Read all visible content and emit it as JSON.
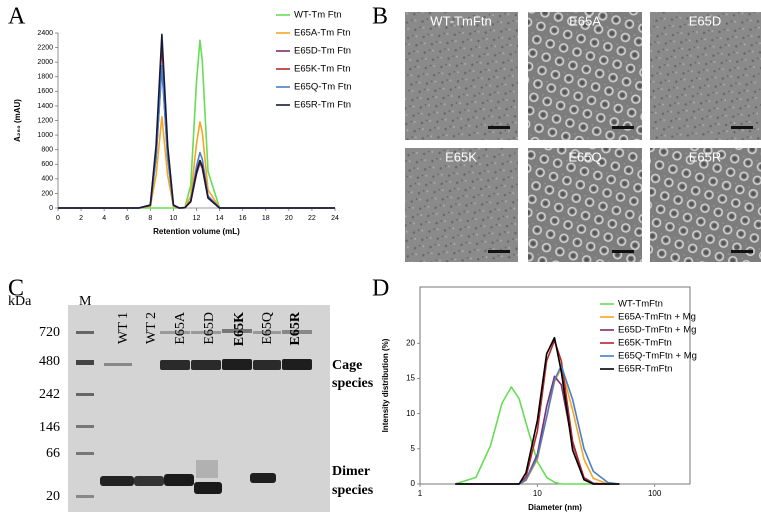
{
  "panel_labels": [
    "A",
    "B",
    "C",
    "D"
  ],
  "chart_data": [
    {
      "type": "line",
      "x_label": "Retention volume (mL)",
      "y_label": "A₂₈₀ (mAU)",
      "x": [
        0,
        7,
        8,
        8.5,
        9,
        9.5,
        10,
        10.5,
        11,
        11.5,
        12,
        12.3,
        12.5,
        13,
        14,
        24
      ],
      "xlim": [
        0,
        24
      ],
      "xticks": [
        0,
        2,
        4,
        6,
        8,
        10,
        12,
        14,
        16,
        18,
        20,
        22,
        24
      ],
      "ylim": [
        0,
        2400
      ],
      "yticks": [
        0,
        200,
        400,
        600,
        800,
        1000,
        1200,
        1400,
        1600,
        1800,
        2000,
        2200,
        2400
      ],
      "frame": false,
      "legend": "upper right",
      "series": [
        {
          "name": "WT-Tm Ftn",
          "color": "#66dd55",
          "values": [
            0,
            0,
            0,
            0,
            0,
            0,
            0,
            0,
            10,
            310,
            1730,
            2300,
            2020,
            500,
            0,
            0
          ]
        },
        {
          "name": "E65A-Tm Ftn",
          "color": "#f5a623",
          "values": [
            0,
            0,
            20,
            450,
            1250,
            450,
            20,
            0,
            10,
            160,
            880,
            1180,
            1040,
            250,
            0,
            0
          ]
        },
        {
          "name": "E65D-Tm Ftn",
          "color": "#7b2d70",
          "values": [
            0,
            0,
            35,
            700,
            1950,
            700,
            35,
            0,
            5,
            90,
            490,
            650,
            570,
            140,
            0,
            0
          ]
        },
        {
          "name": "E65K-Tm Ftn",
          "color": "#b5282a",
          "values": [
            0,
            0,
            40,
            810,
            2250,
            810,
            40,
            0,
            5,
            85,
            465,
            620,
            545,
            135,
            0,
            0
          ]
        },
        {
          "name": "E65Q-Tm Ftn",
          "color": "#4a7fc8",
          "values": [
            0,
            0,
            35,
            700,
            1950,
            700,
            35,
            0,
            5,
            100,
            570,
            760,
            670,
            165,
            0,
            0
          ]
        },
        {
          "name": "E65R-Tm Ftn",
          "color": "#151a3a",
          "values": [
            0,
            0,
            40,
            860,
            2380,
            860,
            40,
            0,
            5,
            90,
            490,
            650,
            570,
            140,
            0,
            0
          ]
        }
      ]
    },
    {
      "type": "line",
      "x_label": "Diameter (nm)",
      "y_label": "Intensity distribution (%)",
      "xscale": "log",
      "x": [
        2,
        3,
        4,
        5,
        6,
        7,
        8,
        10,
        12,
        14,
        16,
        20,
        25,
        30,
        40,
        50
      ],
      "xlim": [
        1,
        200
      ],
      "xticks": [
        1,
        10,
        100
      ],
      "ylim": [
        0,
        28
      ],
      "yticks": [
        0,
        5,
        10,
        15,
        20
      ],
      "frame": true,
      "legend": "upper right",
      "series": [
        {
          "name": "WT-TmFtn",
          "color": "#66dd55",
          "values": [
            0.02,
            0.94,
            5.5,
            11.5,
            13.8,
            12.1,
            8.7,
            3.2,
            0.94,
            0.25,
            0,
            0,
            0,
            0,
            0,
            0
          ]
        },
        {
          "name": "E65A-TmFtn + Mg",
          "color": "#f5a623",
          "values": [
            0,
            0,
            0,
            0,
            0,
            0,
            0.5,
            3.5,
            9.5,
            14.5,
            16.5,
            10.5,
            3.5,
            0.8,
            0,
            0
          ]
        },
        {
          "name": "E65D-TmFtn + Mg",
          "color": "#7b2d70",
          "values": [
            0,
            0,
            0,
            0,
            0,
            0,
            0.6,
            4.2,
            11,
            15.3,
            14.1,
            5.7,
            0.9,
            0.1,
            0,
            0
          ]
        },
        {
          "name": "E65K-TmFtn",
          "color": "#b5282a",
          "values": [
            0,
            0,
            0,
            0,
            0,
            0,
            1,
            7.5,
            17.5,
            20.4,
            17.5,
            6,
            0.8,
            0,
            0,
            0
          ]
        },
        {
          "name": "E65Q-TmFtn + Mg",
          "color": "#4a7fc8",
          "values": [
            0,
            0,
            0,
            0,
            0,
            0,
            0.6,
            3.8,
            9.5,
            14.8,
            16.8,
            12,
            5,
            1.8,
            0.2,
            0
          ]
        },
        {
          "name": "E65R-TmFtn",
          "color": "#000000",
          "values": [
            0,
            0,
            0,
            0,
            0,
            0,
            1.6,
            9,
            18.5,
            20.8,
            16,
            4.8,
            0.6,
            0,
            0,
            0
          ]
        }
      ]
    }
  ],
  "micrographs": [
    "WT-TmFtn",
    "E65A",
    "E65D",
    "E65K",
    "E65Q",
    "E65R"
  ],
  "gel": {
    "unit": "kDa",
    "marker_lane": "M",
    "lanes": [
      "WT 1",
      "WT 2",
      "E65A",
      "E65D",
      "E65K",
      "E65Q",
      "E65R"
    ],
    "markers": [
      720,
      480,
      242,
      146,
      66,
      20
    ],
    "annotations": [
      [
        "Cage",
        "species"
      ],
      [
        "Dimer",
        "species"
      ]
    ]
  }
}
